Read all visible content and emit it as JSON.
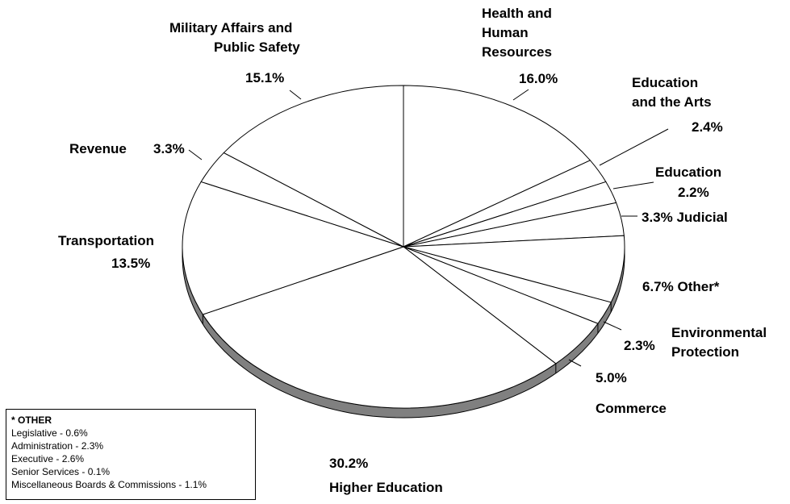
{
  "chart_data": {
    "type": "pie",
    "title": "",
    "slices": [
      {
        "label": "Health and Human Resources",
        "value": 16.0,
        "value_label": "16.0%"
      },
      {
        "label": "Education and the Arts",
        "value": 2.4,
        "value_label": "2.4%"
      },
      {
        "label": "Education",
        "value": 2.2,
        "value_label": "2.2%"
      },
      {
        "label": "Judicial",
        "value": 3.3,
        "value_label": "3.3%"
      },
      {
        "label": "Other*",
        "value": 6.7,
        "value_label": "6.7%"
      },
      {
        "label": "Environmental Protection",
        "value": 2.3,
        "value_label": "2.3%"
      },
      {
        "label": "Commerce",
        "value": 5.0,
        "value_label": "5.0%"
      },
      {
        "label": "Higher Education",
        "value": 30.2,
        "value_label": "30.2%"
      },
      {
        "label": "Transportation",
        "value": 13.5,
        "value_label": "13.5%"
      },
      {
        "label": "Revenue",
        "value": 3.3,
        "value_label": "3.3%"
      },
      {
        "label": "Military Affairs and Public Safety",
        "value": 15.1,
        "value_label": "15.1%"
      }
    ],
    "colors": {
      "slice_fill": "#ffffff",
      "edge": "#808080",
      "stroke": "#000000"
    }
  },
  "labels": {
    "health": {
      "l1": "Health and",
      "l2": "Human",
      "l3": "Resources",
      "pct": "16.0%"
    },
    "edu_arts": {
      "l1": "Education",
      "l2": "and the Arts",
      "pct": "2.4%"
    },
    "education": {
      "l1": "Education",
      "pct": "2.2%"
    },
    "judicial": {
      "text": "3.3% Judicial"
    },
    "other": {
      "text": "6.7% Other*"
    },
    "environmental": {
      "l1": "Environmental",
      "l2": "Protection",
      "pct": "2.3%"
    },
    "commerce": {
      "pct": "5.0%",
      "name": "Commerce"
    },
    "higher_ed": {
      "pct": "30.2%",
      "name": "Higher Education"
    },
    "transportation": {
      "name": "Transportation",
      "pct": "13.5%"
    },
    "revenue": {
      "name": "Revenue",
      "pct": "3.3%"
    },
    "military": {
      "l1": "Military Affairs and",
      "l2": "Public Safety",
      "pct": "15.1%"
    }
  },
  "other_note": {
    "title": "* OTHER",
    "items": [
      "Legislative - 0.6%",
      "Administration - 2.3%",
      "Executive - 2.6%",
      "Senior Services - 0.1%",
      "Miscellaneous Boards & Commissions - 1.1%"
    ]
  }
}
